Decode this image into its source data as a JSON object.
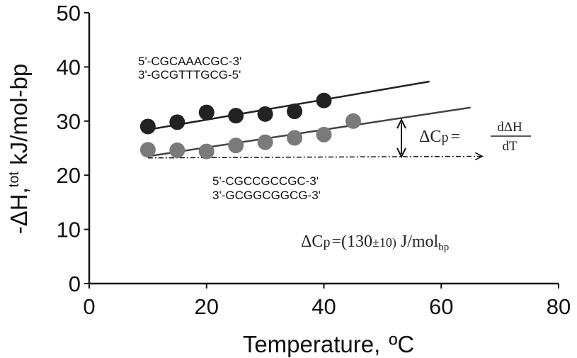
{
  "chart_data": {
    "type": "scatter",
    "xlabel": "Temperature,",
    "xlabel_unit": "ºC",
    "ylabel_prefix": "-ΔH,",
    "ylabel_sup": "tot",
    "ylabel_suffix": " kJ/mol-bp",
    "xlim": [
      0,
      80
    ],
    "ylim": [
      0,
      50
    ],
    "xticks": [
      "0",
      "20",
      "40",
      "60",
      "80"
    ],
    "yticks": [
      "0",
      "10",
      "20",
      "30",
      "40",
      "50"
    ],
    "grid": false,
    "series": [
      {
        "label_line1": "5'-CGCAAACGC-3'",
        "label_line2": "3'-GCGTTTGCG-5'",
        "color": "#222222",
        "x": [
          10,
          15,
          20,
          25,
          30,
          35,
          40
        ],
        "y": [
          29.0,
          29.8,
          31.6,
          31.0,
          31.3,
          31.8,
          33.8
        ],
        "fit": {
          "x": [
            10,
            58
          ],
          "y": [
            28.4,
            37.3
          ]
        }
      },
      {
        "label_line1": "5'-CGCCGCCGC-3'",
        "label_line2": "3'-GCGGCGGCG-3'",
        "color": "#7a7a7a",
        "x": [
          10,
          15,
          20,
          25,
          30,
          35,
          40,
          45
        ],
        "y": [
          24.7,
          24.6,
          24.4,
          25.5,
          26.1,
          26.9,
          27.5,
          30.0
        ],
        "fit": {
          "x": [
            10,
            65
          ],
          "y": [
            23.5,
            32.5
          ]
        }
      }
    ],
    "reference_line": {
      "x": [
        10,
        67
      ],
      "y": [
        23.2,
        23.5
      ]
    },
    "annotation_formula": {
      "lhs": "ΔC",
      "sub": "p",
      "eq": "=",
      "num": "dΔH",
      "den": "dT"
    },
    "annotation_result": {
      "lhs": "ΔC",
      "sub": "p",
      "eq": "=(130",
      "pm": "±10)",
      "unit": " J/mol",
      "unit_sub": "bp"
    }
  }
}
